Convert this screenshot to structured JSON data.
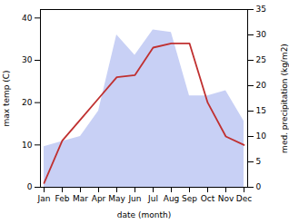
{
  "chart_data": {
    "type": "line",
    "categories": [
      "Jan",
      "Feb",
      "Mar",
      "Apr",
      "May",
      "Jun",
      "Jul",
      "Aug",
      "Sep",
      "Oct",
      "Nov",
      "Dec"
    ],
    "xlabel": "date (month)",
    "ylabel": "max temp (C)",
    "y2label": "med. precipitation (kg/m2)",
    "series": [
      {
        "type": "area",
        "axis": "y2",
        "color": "#c8d0f5",
        "values": [
          8.0,
          9.0,
          10.0,
          15.0,
          30.0,
          26.0,
          31.0,
          30.5,
          18.0,
          18.0,
          19.0,
          13.0
        ]
      },
      {
        "type": "line",
        "color": "#c03030",
        "values": [
          1.0,
          11.0,
          16.0,
          21.0,
          26.0,
          26.5,
          33.0,
          34.0,
          34.0,
          20.0,
          12.0,
          10.0
        ]
      }
    ],
    "ylim": [
      0,
      42
    ],
    "yticks": [
      0,
      10,
      20,
      30,
      40
    ],
    "y2lim": [
      0,
      35
    ],
    "y2ticks": [
      0,
      5,
      10,
      15,
      20,
      25,
      30,
      35
    ]
  }
}
